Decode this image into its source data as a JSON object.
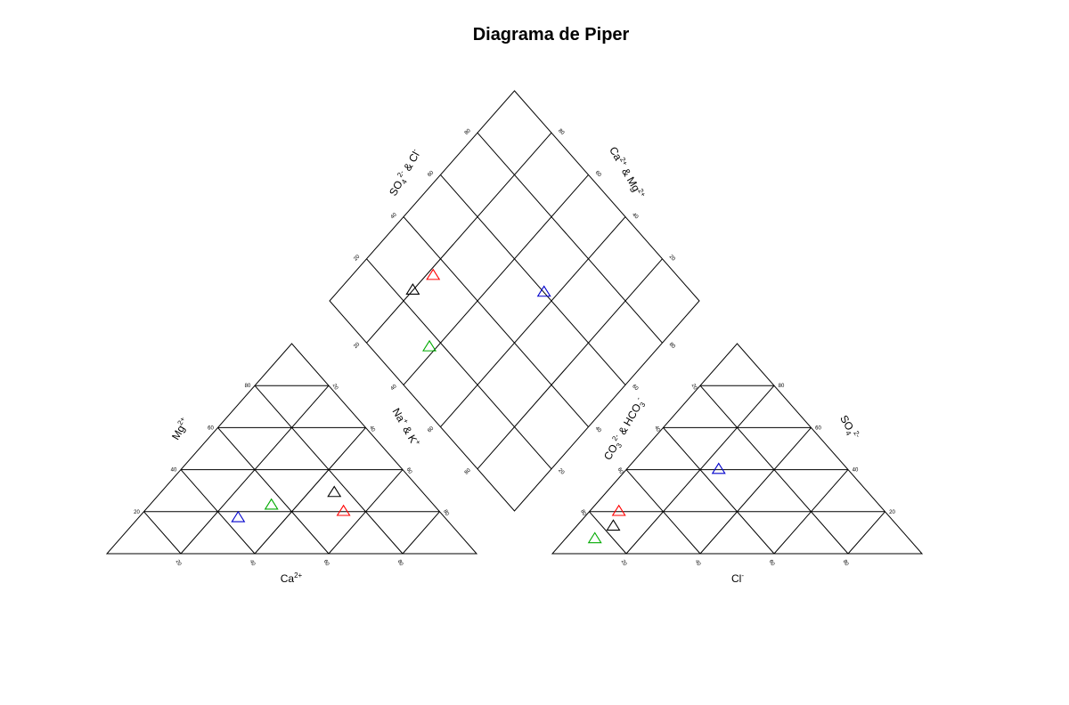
{
  "title": "Diagrama de Piper",
  "chart_data": {
    "type": "scatter",
    "title": "Diagrama de Piper",
    "grid_step_percent": 20,
    "axis_labels": {
      "cation_bottom": {
        "base": "Ca",
        "sup": "2+"
      },
      "cation_left": {
        "base": "Mg",
        "sup": "2+"
      },
      "cation_right": {
        "base": "Na",
        "sup": "+",
        "rest": " & K",
        "sup2": "+"
      },
      "anion_bottom": {
        "base": "Cl",
        "sup": "-"
      },
      "anion_right": {
        "base": "SO",
        "sub": "4",
        "sup": "2-"
      },
      "anion_left": {
        "base": "CO",
        "sub": "3",
        "sup": "2-",
        "rest": " & HCO",
        "sub2": "3",
        "sup2": "-"
      },
      "diamond_left": {
        "base": "SO",
        "sub": "4",
        "sup": "2-",
        "rest": " & Cl",
        "sup2": "-"
      },
      "diamond_right": {
        "base": "Ca",
        "sup": "2+",
        "rest": " & Mg",
        "sup2": "2+"
      }
    },
    "tick_labels": [
      "20",
      "40",
      "60",
      "80"
    ],
    "samples": [
      {
        "color": "#ff0000",
        "cation": {
          "Ca": 54,
          "Mg": 20
        },
        "anion": {
          "Cl": 8,
          "SO4": 20
        },
        "diamond": {
          "SO4_Cl": 34,
          "Ca_Mg": 78
        }
      },
      {
        "color": "#000000",
        "cation": {
          "Ca": 47,
          "Mg": 29
        },
        "anion": {
          "Cl": 10,
          "SO4": 13
        },
        "diamond": {
          "SO4_Cl": 25,
          "Ca_Mg": 80
        }
      },
      {
        "color": "#00aa00",
        "cation": {
          "Ca": 33,
          "Mg": 23
        },
        "anion": {
          "Cl": 8,
          "SO4": 7
        },
        "diamond": {
          "SO4_Cl": 16,
          "Ca_Mg": 62
        }
      },
      {
        "color": "#0000cc",
        "cation": {
          "Ca": 27,
          "Mg": 17
        },
        "anion": {
          "Cl": 25,
          "SO4": 40
        },
        "diamond": {
          "SO4_Cl": 60,
          "Ca_Mg": 44
        }
      }
    ]
  }
}
